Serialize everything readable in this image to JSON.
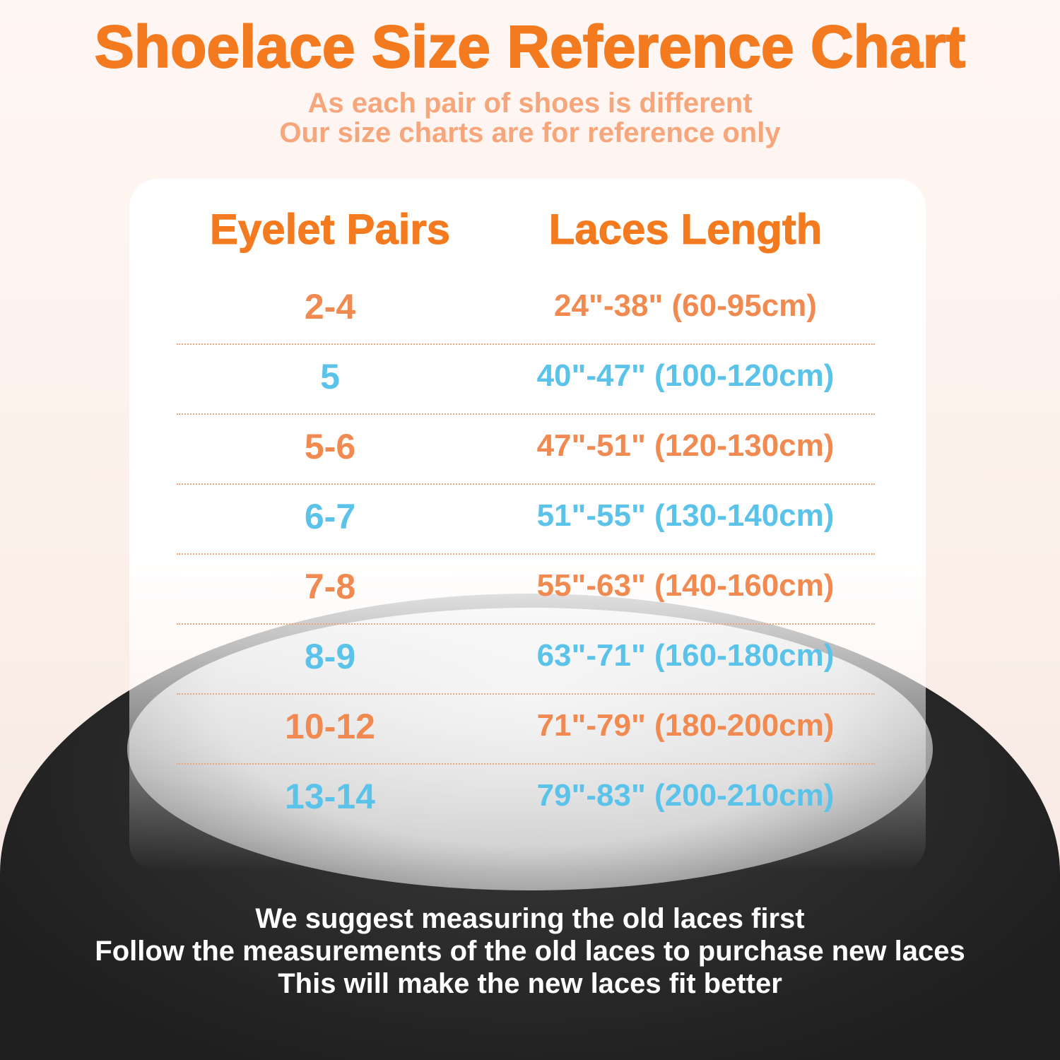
{
  "title": "Shoelace Size Reference Chart",
  "subtitle": [
    "As each pair of shoes is different",
    "Our size charts are for reference only"
  ],
  "table": {
    "headers": [
      "Eyelet Pairs",
      "Laces Length"
    ],
    "rows": [
      {
        "pairs": "2-4",
        "length": "24\"-38\" (60-95cm)",
        "color": "#f08a50"
      },
      {
        "pairs": "5",
        "length": "40\"-47\" (100-120cm)",
        "color": "#5bc3ea"
      },
      {
        "pairs": "5-6",
        "length": "47\"-51\" (120-130cm)",
        "color": "#f08a50"
      },
      {
        "pairs": "6-7",
        "length": "51\"-55\" (130-140cm)",
        "color": "#5bc3ea"
      },
      {
        "pairs": "7-8",
        "length": "55\"-63\" (140-160cm)",
        "color": "#f08a50"
      },
      {
        "pairs": "8-9",
        "length": "63\"-71\" (160-180cm)",
        "color": "#5bc3ea"
      },
      {
        "pairs": "10-12",
        "length": "71\"-79\" (180-200cm)",
        "color": "#f08a50"
      },
      {
        "pairs": "13-14",
        "length": "79\"-83\" (200-210cm)",
        "color": "#5bc3ea"
      }
    ]
  },
  "footer": [
    "We suggest measuring the old laces first",
    "Follow the measurements of the old laces to purchase new laces",
    "This will make the new laces fit better"
  ],
  "colors": {
    "accent": "#f47a20",
    "orange_text": "#f08a50",
    "blue_text": "#5bc3ea"
  }
}
